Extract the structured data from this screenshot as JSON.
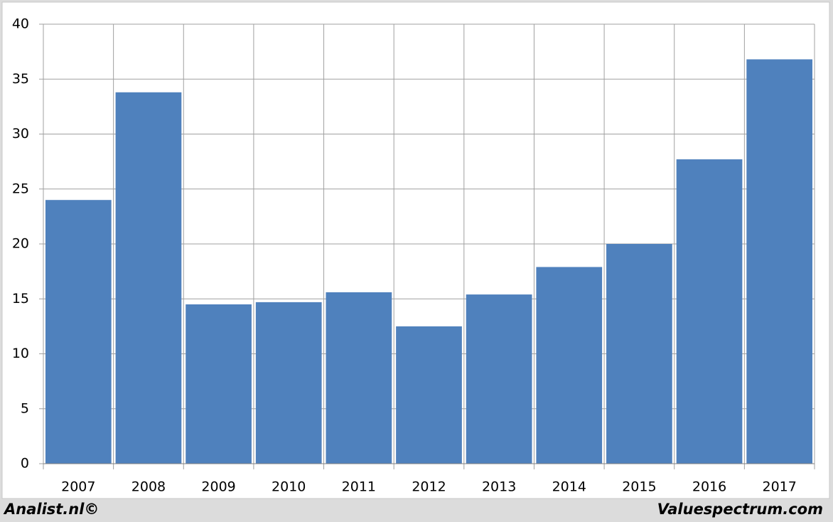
{
  "chart_data": {
    "type": "bar",
    "categories": [
      "2007",
      "2008",
      "2009",
      "2010",
      "2011",
      "2012",
      "2013",
      "2014",
      "2015",
      "2016",
      "2017"
    ],
    "values": [
      24.0,
      33.8,
      14.5,
      14.7,
      15.6,
      12.5,
      15.4,
      17.9,
      20.0,
      27.7,
      36.8
    ],
    "color": "#4f81bd",
    "ylim": [
      0,
      40
    ],
    "yticks": [
      0,
      5,
      10,
      15,
      20,
      25,
      30,
      35,
      40
    ],
    "grid": true,
    "annotations": [
      "Analist.nl©",
      "Valuespectrum.com"
    ]
  }
}
